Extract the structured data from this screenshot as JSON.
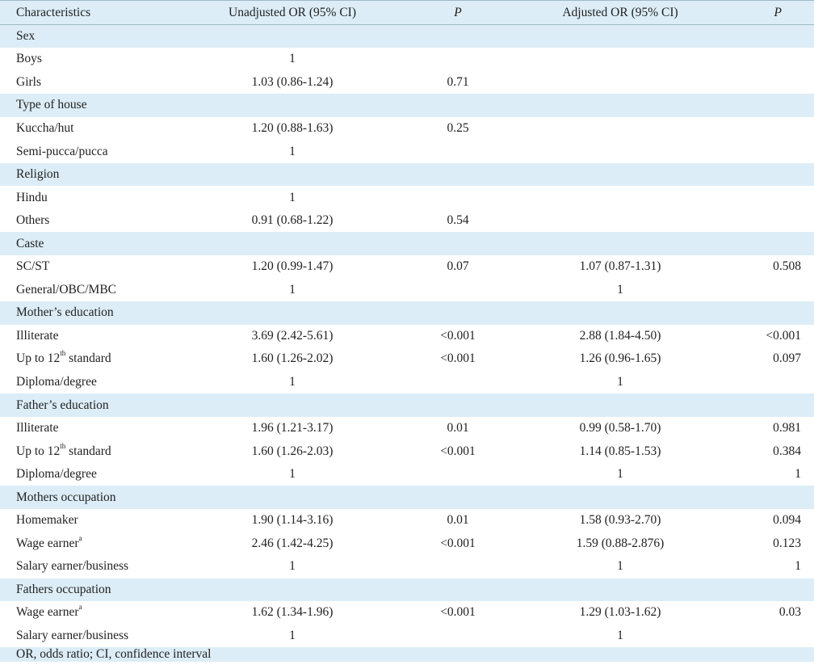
{
  "headers": [
    "Characteristics",
    "Unadjusted OR (95% CI)",
    "P",
    "Adjusted OR (95% CI)",
    "P"
  ],
  "groups": [
    {
      "label": "Sex",
      "rows": [
        {
          "name": "Boys",
          "sup": "",
          "uor": "1",
          "up": "",
          "aor": "",
          "ap": ""
        },
        {
          "name": "Girls",
          "sup": "",
          "uor": "1.03 (0.86-1.24)",
          "up": "0.71",
          "aor": "",
          "ap": ""
        }
      ]
    },
    {
      "label": "Type of house",
      "rows": [
        {
          "name": "Kuccha/hut",
          "sup": "",
          "uor": "1.20 (0.88-1.63)",
          "up": "0.25",
          "aor": "",
          "ap": ""
        },
        {
          "name": "Semi-pucca/pucca",
          "sup": "",
          "uor": "1",
          "up": "",
          "aor": "",
          "ap": ""
        }
      ]
    },
    {
      "label": "Religion",
      "rows": [
        {
          "name": "Hindu",
          "sup": "",
          "uor": "1",
          "up": "",
          "aor": "",
          "ap": ""
        },
        {
          "name": "Others",
          "sup": "",
          "uor": "0.91 (0.68-1.22)",
          "up": "0.54",
          "aor": "",
          "ap": ""
        }
      ]
    },
    {
      "label": "Caste",
      "rows": [
        {
          "name": "SC/ST",
          "sup": "",
          "uor": "1.20 (0.99-1.47)",
          "up": "0.07",
          "aor": "1.07 (0.87-1.31)",
          "ap": "0.508"
        },
        {
          "name": "General/OBC/MBC",
          "sup": "",
          "uor": "1",
          "up": "",
          "aor": "1",
          "ap": ""
        }
      ]
    },
    {
      "label": "Mother’s education",
      "rows": [
        {
          "name": "Illiterate",
          "sup": "",
          "uor": "3.69 (2.42-5.61)",
          "up": "<0.001",
          "aor": "2.88 (1.84-4.50)",
          "ap": "<0.001"
        },
        {
          "name": "Up to 12",
          "sup": "th",
          "name_suffix": " standard",
          "uor": "1.60 (1.26-2.02)",
          "up": "<0.001",
          "aor": "1.26 (0.96-1.65)",
          "ap": "0.097"
        },
        {
          "name": "Diploma/degree",
          "sup": "",
          "uor": "1",
          "up": "",
          "aor": "1",
          "ap": ""
        }
      ]
    },
    {
      "label": "Father’s education",
      "rows": [
        {
          "name": "Illiterate",
          "sup": "",
          "uor": "1.96 (1.21-3.17)",
          "up": "0.01",
          "aor": "0.99 (0.58-1.70)",
          "ap": "0.981"
        },
        {
          "name": "Up to 12",
          "sup": "th",
          "name_suffix": " standard",
          "uor": "1.60 (1.26-2.03)",
          "up": "<0.001",
          "aor": "1.14 (0.85-1.53)",
          "ap": "0.384"
        },
        {
          "name": "Diploma/degree",
          "sup": "",
          "uor": "1",
          "up": "",
          "aor": "1",
          "ap": "1"
        }
      ]
    },
    {
      "label": "Mothers occupation",
      "rows": [
        {
          "name": "Homemaker",
          "sup": "",
          "uor": "1.90 (1.14-3.16)",
          "up": "0.01",
          "aor": "1.58 (0.93-2.70)",
          "ap": "0.094"
        },
        {
          "name": "Wage earner",
          "sup": "a",
          "uor": "2.46 (1.42-4.25)",
          "up": "<0.001",
          "aor": "1.59 (0.88-2.876)",
          "ap": "0.123"
        },
        {
          "name": "Salary earner/business",
          "sup": "",
          "uor": "1",
          "up": "",
          "aor": "1",
          "ap": "1"
        }
      ]
    },
    {
      "label": "Fathers occupation",
      "rows": [
        {
          "name": "Wage earner",
          "sup": "a",
          "uor": "1.62 (1.34-1.96)",
          "up": "<0.001",
          "aor": "1.29 (1.03-1.62)",
          "ap": "0.03"
        },
        {
          "name": "Salary earner/business",
          "sup": "",
          "uor": "1",
          "up": "",
          "aor": "1",
          "ap": ""
        }
      ]
    }
  ],
  "footnote": "OR, odds ratio; CI, confidence interval"
}
